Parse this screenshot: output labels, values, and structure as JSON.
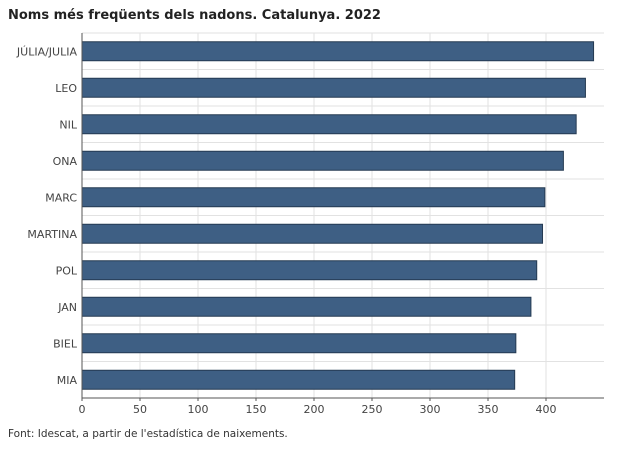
{
  "chart_data": {
    "type": "bar",
    "orientation": "horizontal",
    "title": "Noms més freqüents dels nadons. Catalunya. 2022",
    "categories": [
      "JÚLIA/JULIA",
      "LEO",
      "NIL",
      "ONA",
      "MARC",
      "MARTINA",
      "POL",
      "JAN",
      "BIEL",
      "MIA"
    ],
    "values": [
      441,
      434,
      426,
      415,
      399,
      397,
      392,
      387,
      374,
      373
    ],
    "xlabel": "",
    "ylabel": "",
    "xlim": [
      0,
      450
    ],
    "x_ticks": [
      0,
      50,
      100,
      150,
      200,
      250,
      300,
      350,
      400
    ],
    "grid": true,
    "legend": "none",
    "bar_color": "#3e5f84",
    "bar_border_color": "#253a52",
    "grid_color": "#e2e2e2"
  },
  "source": "Font: Idescat, a partir de l'estadística de naixements."
}
